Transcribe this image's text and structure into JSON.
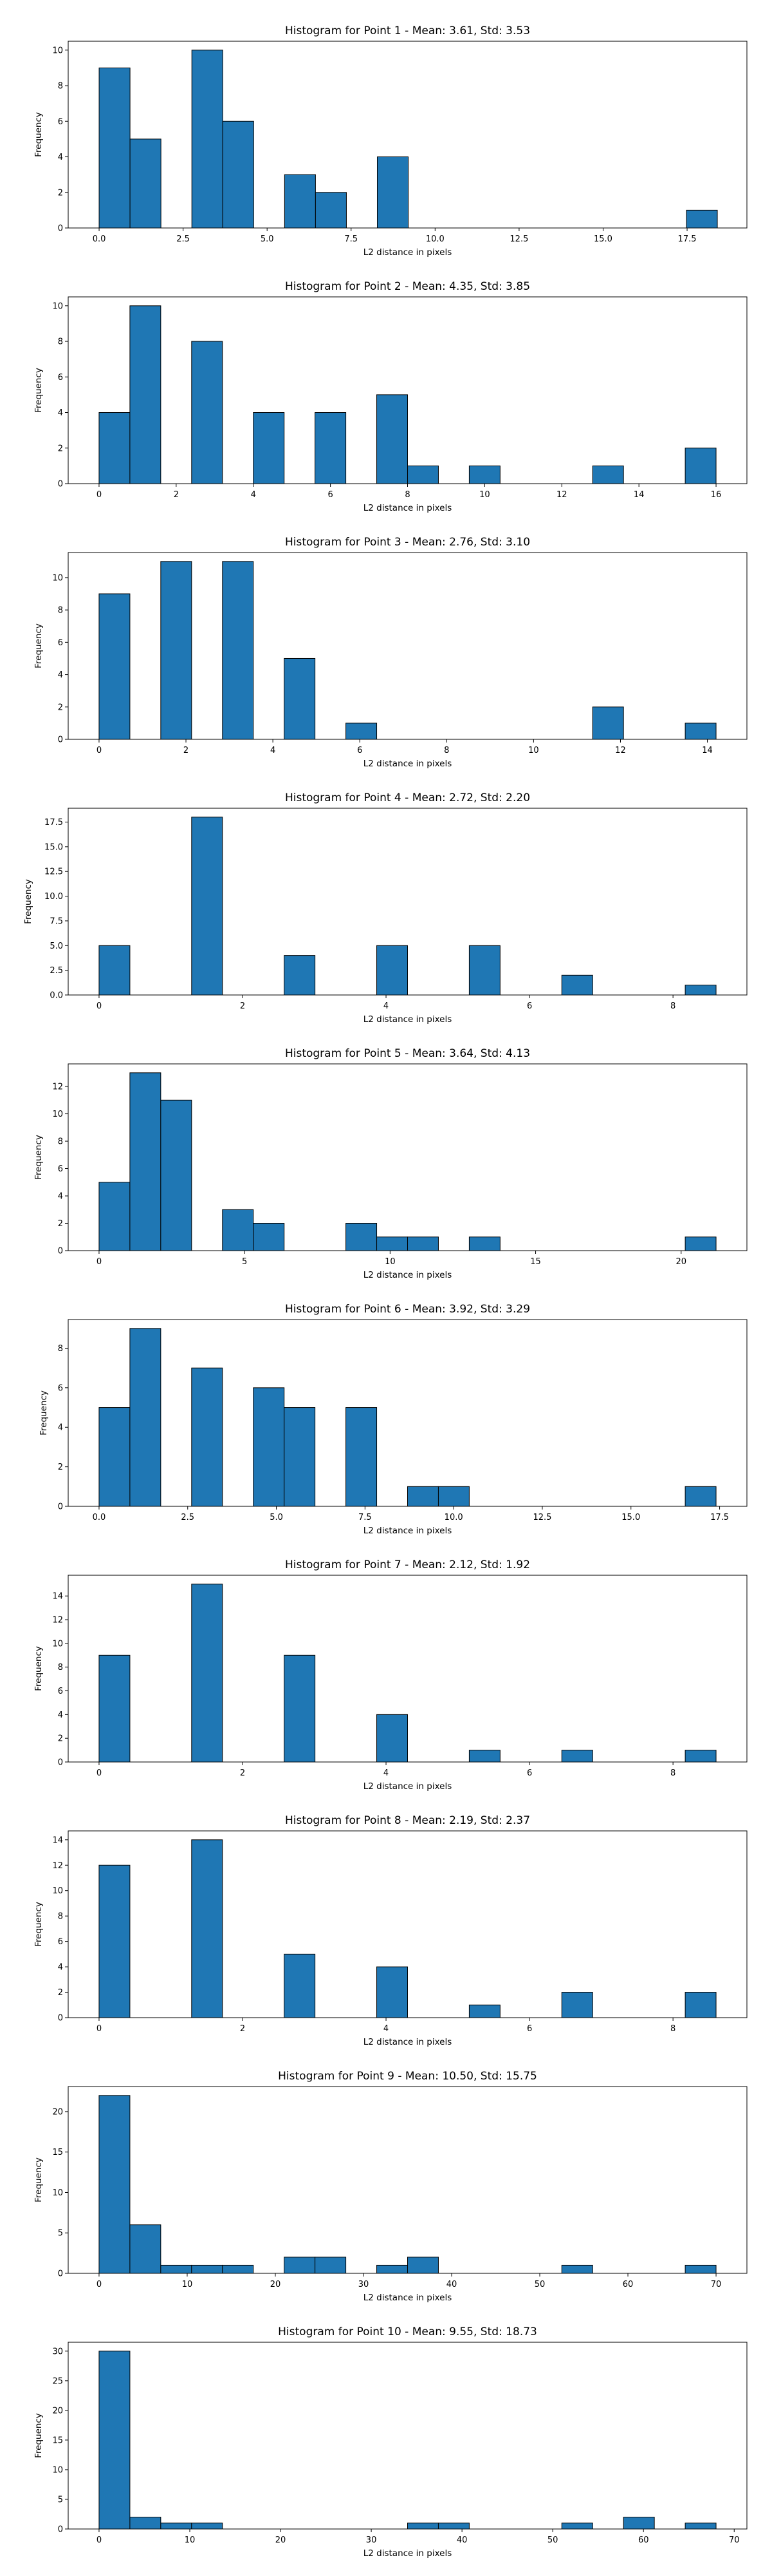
{
  "style": {
    "bar_color": "#1f77b4",
    "edge_color": "#000000"
  },
  "chart_data": [
    {
      "type": "bar",
      "title": "Histogram for Point 1 - Mean: 3.61, Std: 3.53",
      "xlabel": "L2 distance in pixels",
      "ylabel": "Frequency",
      "grid": false,
      "xlim": [
        -0.92,
        19.28
      ],
      "ylim": [
        0,
        10.5
      ],
      "bin_edges": [
        0,
        0.92,
        1.84,
        2.76,
        3.68,
        4.6,
        5.52,
        6.44,
        7.36,
        8.28,
        9.2,
        10.12,
        11.04,
        11.96,
        12.88,
        13.8,
        14.72,
        15.64,
        16.56,
        17.48,
        18.4
      ],
      "values": [
        9,
        5,
        0,
        10,
        6,
        0,
        3,
        2,
        0,
        4,
        0,
        0,
        0,
        0,
        0,
        0,
        0,
        0,
        0,
        1
      ],
      "xticks": [
        0,
        2.5,
        5,
        7.5,
        10,
        12.5,
        15,
        17.5
      ],
      "xtick_labels": [
        "0.0",
        "2.5",
        "5.0",
        "7.5",
        "10.0",
        "12.5",
        "15.0",
        "17.5"
      ],
      "yticks": [
        0,
        2,
        4,
        6,
        8,
        10
      ],
      "ytick_labels": [
        "0",
        "2",
        "4",
        "6",
        "8",
        "10"
      ]
    },
    {
      "type": "bar",
      "title": "Histogram for Point 2 - Mean: 4.35, Std: 3.85",
      "xlabel": "L2 distance in pixels",
      "ylabel": "Frequency",
      "grid": false,
      "xlim": [
        -0.8,
        16.8
      ],
      "ylim": [
        0,
        10.5
      ],
      "bin_edges": [
        0,
        0.8,
        1.6,
        2.4,
        3.2,
        4,
        4.8,
        5.6,
        6.4,
        7.2,
        8,
        8.8,
        9.6,
        10.4,
        11.2,
        12,
        12.8,
        13.6,
        14.4,
        15.2,
        16
      ],
      "values": [
        4,
        10,
        0,
        8,
        0,
        4,
        0,
        4,
        0,
        5,
        1,
        0,
        1,
        0,
        0,
        0,
        1,
        0,
        0,
        2
      ],
      "xticks": [
        0,
        2,
        4,
        6,
        8,
        10,
        12,
        14,
        16
      ],
      "xtick_labels": [
        "0",
        "2",
        "4",
        "6",
        "8",
        "10",
        "12",
        "14",
        "16"
      ],
      "yticks": [
        0,
        2,
        4,
        6,
        8,
        10
      ],
      "ytick_labels": [
        "0",
        "2",
        "4",
        "6",
        "8",
        "10"
      ]
    },
    {
      "type": "bar",
      "title": "Histogram for Point 3 - Mean: 2.76, Std: 3.10",
      "xlabel": "L2 distance in pixels",
      "ylabel": "Frequency",
      "grid": false,
      "xlim": [
        -0.71,
        14.91
      ],
      "ylim": [
        0,
        11.55
      ],
      "bin_edges": [
        0,
        0.71,
        1.42,
        2.13,
        2.84,
        3.55,
        4.26,
        4.97,
        5.68,
        6.39,
        7.1,
        7.81,
        8.52,
        9.23,
        9.94,
        10.65,
        11.36,
        12.07,
        12.78,
        13.49,
        14.2
      ],
      "values": [
        9,
        0,
        11,
        0,
        11,
        0,
        5,
        0,
        1,
        0,
        0,
        0,
        0,
        0,
        0,
        0,
        2,
        0,
        0,
        1
      ],
      "xticks": [
        0,
        2,
        4,
        6,
        8,
        10,
        12,
        14
      ],
      "xtick_labels": [
        "0",
        "2",
        "4",
        "6",
        "8",
        "10",
        "12",
        "14"
      ],
      "yticks": [
        0,
        2,
        4,
        6,
        8,
        10
      ],
      "ytick_labels": [
        "0",
        "2",
        "4",
        "6",
        "8",
        "10"
      ]
    },
    {
      "type": "bar",
      "title": "Histogram for Point 4 - Mean: 2.72, Std: 2.20",
      "xlabel": "L2 distance in pixels",
      "ylabel": "Frequency",
      "grid": false,
      "xlim": [
        -0.43,
        9.03
      ],
      "ylim": [
        0,
        18.9
      ],
      "bin_edges": [
        0,
        0.43,
        0.86,
        1.29,
        1.72,
        2.15,
        2.58,
        3.01,
        3.44,
        3.87,
        4.3,
        4.73,
        5.16,
        5.59,
        6.02,
        6.45,
        6.88,
        7.31,
        7.74,
        8.17,
        8.6
      ],
      "values": [
        5,
        0,
        0,
        18,
        0,
        0,
        4,
        0,
        0,
        5,
        0,
        0,
        5,
        0,
        0,
        2,
        0,
        0,
        0,
        1
      ],
      "xticks": [
        0,
        2,
        4,
        6,
        8
      ],
      "xtick_labels": [
        "0",
        "2",
        "4",
        "6",
        "8"
      ],
      "yticks": [
        0,
        2.5,
        5,
        7.5,
        10,
        12.5,
        15,
        17.5
      ],
      "ytick_labels": [
        "0.0",
        "2.5",
        "5.0",
        "7.5",
        "10.0",
        "12.5",
        "15.0",
        "17.5"
      ]
    },
    {
      "type": "bar",
      "title": "Histogram for Point 5 - Mean: 3.64, Std: 4.13",
      "xlabel": "L2 distance in pixels",
      "ylabel": "Frequency",
      "grid": false,
      "xlim": [
        -1.06,
        22.26
      ],
      "ylim": [
        0,
        13.65
      ],
      "bin_edges": [
        0,
        1.06,
        2.12,
        3.18,
        4.24,
        5.3,
        6.36,
        7.42,
        8.48,
        9.54,
        10.6,
        11.66,
        12.72,
        13.78,
        14.84,
        15.9,
        16.96,
        18.02,
        19.08,
        20.14,
        21.2
      ],
      "values": [
        5,
        13,
        11,
        0,
        3,
        2,
        0,
        0,
        2,
        1,
        1,
        0,
        1,
        0,
        0,
        0,
        0,
        0,
        0,
        1
      ],
      "xticks": [
        0,
        5,
        10,
        15,
        20
      ],
      "xtick_labels": [
        "0",
        "5",
        "10",
        "15",
        "20"
      ],
      "yticks": [
        0,
        2,
        4,
        6,
        8,
        10,
        12
      ],
      "ytick_labels": [
        "0",
        "2",
        "4",
        "6",
        "8",
        "10",
        "12"
      ]
    },
    {
      "type": "bar",
      "title": "Histogram for Point 6 - Mean: 3.92, Std: 3.29",
      "xlabel": "L2 distance in pixels",
      "ylabel": "Frequency",
      "grid": false,
      "xlim": [
        -0.87,
        18.27
      ],
      "ylim": [
        0,
        9.45
      ],
      "bin_edges": [
        0,
        0.87,
        1.74,
        2.61,
        3.48,
        4.35,
        5.22,
        6.09,
        6.96,
        7.83,
        8.7,
        9.57,
        10.44,
        11.31,
        12.18,
        13.05,
        13.92,
        14.79,
        15.66,
        16.53,
        17.4
      ],
      "values": [
        5,
        9,
        0,
        7,
        0,
        6,
        5,
        0,
        5,
        0,
        1,
        1,
        0,
        0,
        0,
        0,
        0,
        0,
        0,
        1
      ],
      "xticks": [
        0,
        2.5,
        5,
        7.5,
        10,
        12.5,
        15,
        17.5
      ],
      "xtick_labels": [
        "0.0",
        "2.5",
        "5.0",
        "7.5",
        "10.0",
        "12.5",
        "15.0",
        "17.5"
      ],
      "yticks": [
        0,
        2,
        4,
        6,
        8
      ],
      "ytick_labels": [
        "0",
        "2",
        "4",
        "6",
        "8"
      ]
    },
    {
      "type": "bar",
      "title": "Histogram for Point 7 - Mean: 2.12, Std: 1.92",
      "xlabel": "L2 distance in pixels",
      "ylabel": "Frequency",
      "grid": false,
      "xlim": [
        -0.43,
        9.03
      ],
      "ylim": [
        0,
        15.75
      ],
      "bin_edges": [
        0,
        0.43,
        0.86,
        1.29,
        1.72,
        2.15,
        2.58,
        3.01,
        3.44,
        3.87,
        4.3,
        4.73,
        5.16,
        5.59,
        6.02,
        6.45,
        6.88,
        7.31,
        7.74,
        8.17,
        8.6
      ],
      "values": [
        9,
        0,
        0,
        15,
        0,
        0,
        9,
        0,
        0,
        4,
        0,
        0,
        1,
        0,
        0,
        1,
        0,
        0,
        0,
        1
      ],
      "xticks": [
        0,
        2,
        4,
        6,
        8
      ],
      "xtick_labels": [
        "0",
        "2",
        "4",
        "6",
        "8"
      ],
      "yticks": [
        0,
        2,
        4,
        6,
        8,
        10,
        12,
        14
      ],
      "ytick_labels": [
        "0",
        "2",
        "4",
        "6",
        "8",
        "10",
        "12",
        "14"
      ]
    },
    {
      "type": "bar",
      "title": "Histogram for Point 8 - Mean: 2.19, Std: 2.37",
      "xlabel": "L2 distance in pixels",
      "ylabel": "Frequency",
      "grid": false,
      "xlim": [
        -0.43,
        9.03
      ],
      "ylim": [
        0,
        14.7
      ],
      "bin_edges": [
        0,
        0.43,
        0.86,
        1.29,
        1.72,
        2.15,
        2.58,
        3.01,
        3.44,
        3.87,
        4.3,
        4.73,
        5.16,
        5.59,
        6.02,
        6.45,
        6.88,
        7.31,
        7.74,
        8.17,
        8.6
      ],
      "values": [
        12,
        0,
        0,
        14,
        0,
        0,
        5,
        0,
        0,
        4,
        0,
        0,
        1,
        0,
        0,
        2,
        0,
        0,
        0,
        2
      ],
      "xticks": [
        0,
        2,
        4,
        6,
        8
      ],
      "xtick_labels": [
        "0",
        "2",
        "4",
        "6",
        "8"
      ],
      "yticks": [
        0,
        2,
        4,
        6,
        8,
        10,
        12,
        14
      ],
      "ytick_labels": [
        "0",
        "2",
        "4",
        "6",
        "8",
        "10",
        "12",
        "14"
      ]
    },
    {
      "type": "bar",
      "title": "Histogram for Point 9 - Mean: 10.50, Std: 15.75",
      "xlabel": "L2 distance in pixels",
      "ylabel": "Frequency",
      "grid": false,
      "xlim": [
        -3.5,
        73.5
      ],
      "ylim": [
        0,
        23.1
      ],
      "bin_edges": [
        0,
        3.5,
        7,
        10.5,
        14,
        17.5,
        21,
        24.5,
        28,
        31.5,
        35,
        38.5,
        42,
        45.5,
        49,
        52.5,
        56,
        59.5,
        63,
        66.5,
        70
      ],
      "values": [
        22,
        6,
        1,
        1,
        1,
        0,
        2,
        2,
        0,
        1,
        2,
        0,
        0,
        0,
        0,
        1,
        0,
        0,
        0,
        1
      ],
      "xticks": [
        0,
        10,
        20,
        30,
        40,
        50,
        60,
        70
      ],
      "xtick_labels": [
        "0",
        "10",
        "20",
        "30",
        "40",
        "50",
        "60",
        "70"
      ],
      "yticks": [
        0,
        5,
        10,
        15,
        20
      ],
      "ytick_labels": [
        "0",
        "5",
        "10",
        "15",
        "20"
      ]
    },
    {
      "type": "bar",
      "title": "Histogram for Point 10 - Mean: 9.55, Std: 18.73",
      "xlabel": "L2 distance in pixels",
      "ylabel": "Frequency",
      "grid": false,
      "xlim": [
        -3.4,
        71.4
      ],
      "ylim": [
        0,
        31.5
      ],
      "bin_edges": [
        0,
        3.4,
        6.8,
        10.2,
        13.6,
        17,
        20.4,
        23.8,
        27.2,
        30.6,
        34,
        37.4,
        40.8,
        44.2,
        47.6,
        51,
        54.4,
        57.8,
        61.2,
        64.6,
        68
      ],
      "values": [
        30,
        2,
        1,
        1,
        0,
        0,
        0,
        0,
        0,
        0,
        1,
        1,
        0,
        0,
        0,
        1,
        0,
        2,
        0,
        1
      ],
      "xticks": [
        0,
        10,
        20,
        30,
        40,
        50,
        60,
        70
      ],
      "xtick_labels": [
        "0",
        "10",
        "20",
        "30",
        "40",
        "50",
        "60",
        "70"
      ],
      "yticks": [
        0,
        5,
        10,
        15,
        20,
        25,
        30
      ],
      "ytick_labels": [
        "0",
        "5",
        "10",
        "15",
        "20",
        "25",
        "30"
      ]
    }
  ]
}
